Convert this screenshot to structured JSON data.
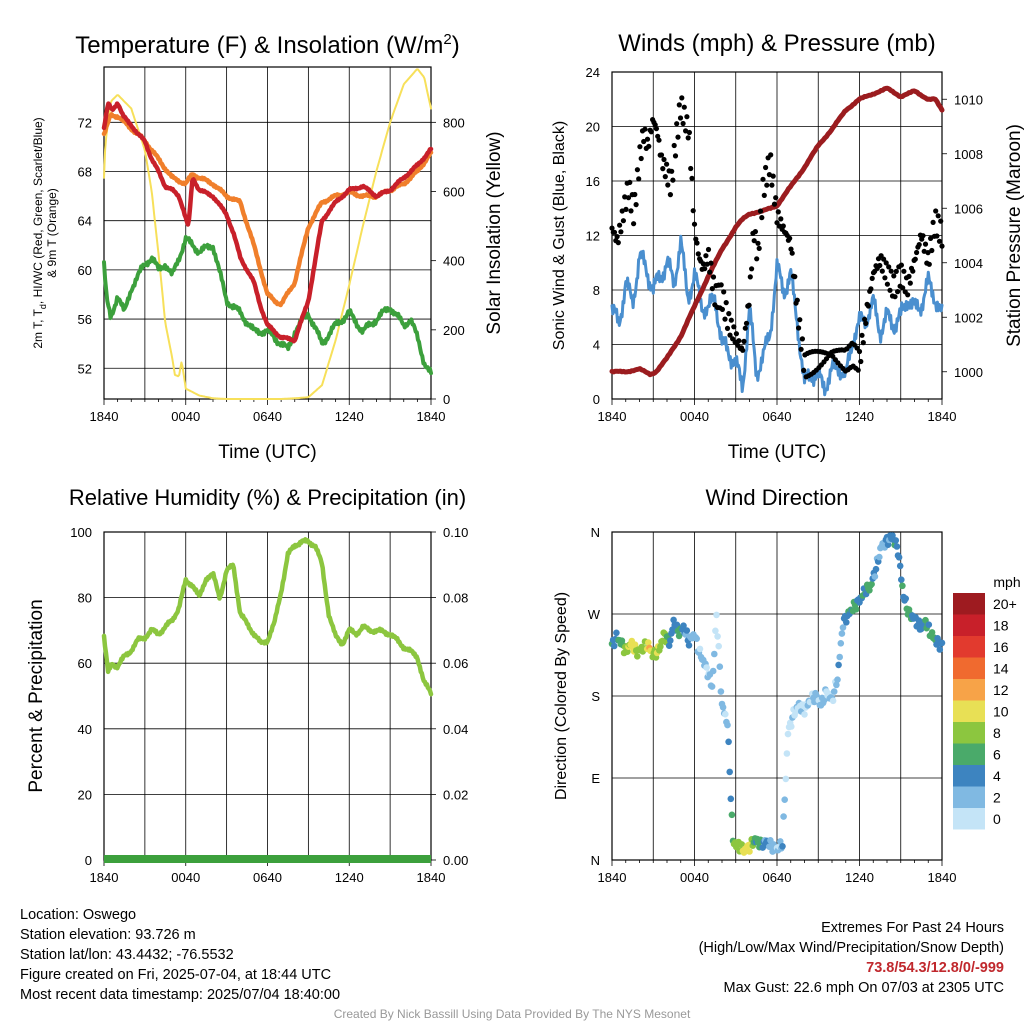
{
  "colors": {
    "red": "#c8202a",
    "orange": "#f07f2b",
    "green": "#3ca03c",
    "yellow": "#f7e05a",
    "blue": "#4a8fcf",
    "black": "#000000",
    "maroon": "#9b1c1f",
    "rh": "#8cc63f",
    "precip": "#3ca03c",
    "extremes": "#c0282d",
    "credit": "#999999"
  },
  "x_ticks": [
    "1840",
    "0040",
    "0640",
    "1240",
    "1840"
  ],
  "chart_data": [
    {
      "type": "line",
      "title": "Temperature (F) & Insolation (W/m²)",
      "title_main": "Temperature (F) & Insolation (W/m",
      "title_sup": "2",
      "title_end": ")",
      "xlabel": "Time (UTC)",
      "ylabel_line1": "2m T, T",
      "ylabel_sub": "d",
      "ylabel_line1_end": ", HI/WC (Red, Green, Scarlet/Blue)",
      "ylabel_line2": "& 9m T (Orange)",
      "y2label": "Solar Insolation (Yellow)",
      "ylim": [
        49.5,
        76.5
      ],
      "yticks": [
        "52",
        "56",
        "60",
        "64",
        "68",
        "72"
      ],
      "y2lim": [
        0,
        960
      ],
      "y2ticks": [
        "0",
        "200",
        "400",
        "600",
        "800"
      ],
      "x_hours": [
        0,
        3,
        6,
        9,
        12,
        15,
        18,
        21,
        24
      ],
      "series": [
        {
          "key": "t2m",
          "x": [
            0,
            0.3,
            0.6,
            1,
            1.4,
            2,
            2.5,
            3,
            3.5,
            4,
            4.5,
            5,
            5.5,
            5.8,
            6,
            6.2,
            6.5,
            7,
            8,
            9,
            9.5,
            10,
            11,
            11.5,
            12,
            12.5,
            13,
            14,
            15,
            16,
            17,
            18,
            19,
            20,
            21,
            22,
            23,
            24
          ],
          "y": [
            71.5,
            73.5,
            73.0,
            73.6,
            72.5,
            71.8,
            71.0,
            70.5,
            69.0,
            68.0,
            66.8,
            66.5,
            66.0,
            65.0,
            64.2,
            63.5,
            67.5,
            66.5,
            66.0,
            64.5,
            63.0,
            61.0,
            59.0,
            57.0,
            55.5,
            55.0,
            54.5,
            54.3,
            57.5,
            64.0,
            65.5,
            66.5,
            66.8,
            66.0,
            66.5,
            67.5,
            68.5,
            69.8
          ]
        },
        {
          "key": "t9m",
          "x": [
            0,
            0.5,
            1,
            1.5,
            2,
            3,
            4,
            5,
            6,
            6.5,
            7,
            8,
            9,
            10,
            11,
            12,
            12.5,
            13,
            14,
            15,
            16,
            17,
            18,
            19,
            20,
            21,
            22,
            23,
            24
          ],
          "y": [
            71.0,
            72.6,
            72.5,
            72.0,
            71.5,
            70.5,
            69.0,
            67.5,
            67.0,
            67.8,
            67.5,
            67.0,
            66.0,
            65.5,
            62.0,
            58.0,
            57.5,
            57.2,
            59.0,
            63.5,
            65.5,
            66.0,
            66.3,
            66.0,
            66.0,
            66.5,
            67.0,
            68.0,
            69.5
          ]
        },
        {
          "key": "td",
          "x": [
            0,
            0.2,
            0.5,
            1,
            1.5,
            2,
            2.5,
            3,
            3.5,
            4,
            4.5,
            5,
            5.5,
            6,
            6.5,
            7,
            8,
            9,
            10,
            11,
            12,
            13,
            13.5,
            14,
            15,
            16,
            17,
            18,
            19,
            20,
            21,
            22,
            22.5,
            23,
            23.5,
            24
          ],
          "y": [
            60.5,
            57.5,
            56.0,
            58.0,
            56.5,
            58.5,
            59.5,
            60.5,
            61.0,
            60.0,
            60.5,
            59.5,
            61.0,
            62.5,
            62.0,
            61.5,
            62.0,
            57.5,
            56.5,
            55.0,
            55.0,
            54.0,
            53.5,
            55.0,
            56.5,
            54.0,
            55.5,
            56.5,
            55.0,
            56.0,
            57.0,
            55.5,
            56.0,
            54.5,
            52.5,
            51.5
          ]
        }
      ],
      "insolation": {
        "x": [
          0,
          0.1,
          0.5,
          1,
          2,
          3,
          3.5,
          4,
          4.5,
          5,
          5.2,
          5.5,
          5.7,
          6,
          7,
          8,
          9,
          10,
          11,
          12,
          13,
          14,
          15,
          16,
          17,
          18,
          19,
          20,
          21,
          22,
          23,
          23.5,
          24
        ],
        "y": [
          640,
          740,
          860,
          880,
          840,
          720,
          600,
          420,
          220,
          120,
          70,
          65,
          110,
          30,
          10,
          2,
          0,
          0,
          0,
          0,
          0,
          2,
          5,
          40,
          170,
          330,
          500,
          660,
          800,
          910,
          955,
          930,
          840
        ]
      }
    },
    {
      "type": "scatter",
      "title": "Winds (mph) & Pressure (mb)",
      "xlabel": "Time (UTC)",
      "ylabel": "Sonic Wind & Gust (Blue, Black)",
      "y2label": "Station Pressure (Maroon)",
      "ylim": [
        0,
        24
      ],
      "yticks": [
        "0",
        "4",
        "8",
        "12",
        "16",
        "20",
        "24"
      ],
      "y2lim": [
        999.0,
        1011.0
      ],
      "y2ticks": [
        "1000",
        "1002",
        "1004",
        "1006",
        "1008",
        "1010"
      ],
      "wind": {
        "x": [
          0,
          0.5,
          1,
          1.5,
          2,
          2.5,
          3,
          3.5,
          4,
          4.5,
          5,
          5.5,
          6,
          6.5,
          7,
          7.5,
          8,
          8.5,
          9,
          9.5,
          10,
          10.5,
          11,
          11.5,
          12,
          12.5,
          13,
          13.5,
          14,
          14.5,
          15,
          15.5,
          16,
          16.5,
          17,
          17.5,
          18,
          18.5,
          19,
          19.5,
          20,
          20.5,
          21,
          21.5,
          22,
          22.5,
          23,
          23.5,
          24
        ],
        "y": [
          6.5,
          5.5,
          8.5,
          7.0,
          10.5,
          9.5,
          8.0,
          9.0,
          10.0,
          8.5,
          11.5,
          7.5,
          9.0,
          7.0,
          6.5,
          7.5,
          4.0,
          3.5,
          2.5,
          1.0,
          6.5,
          2.0,
          3.0,
          5.0,
          9.5,
          8.0,
          9.0,
          5.5,
          1.0,
          2.0,
          1.5,
          1.0,
          2.0,
          2.5,
          1.5,
          4.5,
          5.5,
          6.0,
          7.0,
          5.0,
          6.0,
          5.5,
          6.0,
          7.5,
          6.5,
          7.0,
          8.5,
          7.5,
          6.0
        ]
      },
      "gust": {
        "x": [
          0,
          0.4,
          0.8,
          1.2,
          1.6,
          2,
          2.3,
          2.6,
          3,
          3.3,
          3.6,
          4,
          4.3,
          4.6,
          5,
          5.3,
          5.6,
          6,
          6.3,
          6.6,
          7,
          7.5,
          8,
          8.5,
          9,
          9.5,
          10,
          10.3,
          10.6,
          11,
          11.5,
          12,
          12.5,
          13,
          13.5,
          14,
          15,
          16,
          17,
          17.5,
          18,
          18.5,
          19,
          19.5,
          20,
          20.5,
          21,
          21.5,
          22,
          22.5,
          23,
          23.5,
          24
        ],
        "y": [
          12,
          11,
          13,
          15,
          13,
          17,
          19,
          18,
          20,
          19,
          17,
          16,
          15,
          18,
          21,
          20,
          19,
          12,
          10,
          9,
          10,
          7,
          7,
          5,
          4,
          3,
          7,
          12,
          10,
          15,
          17,
          13,
          12,
          11,
          6,
          2,
          2.5,
          3,
          2.5,
          3,
          2.5,
          6,
          9,
          10,
          9,
          8,
          9,
          8,
          10,
          12,
          10,
          13,
          12
        ]
      },
      "pressure": {
        "x": [
          0,
          1,
          2,
          2.8,
          3.2,
          4,
          5,
          6,
          7,
          8,
          9,
          9.5,
          10,
          11,
          12,
          13,
          14,
          15,
          16,
          17,
          18,
          19,
          20,
          21,
          22,
          23,
          23.5,
          24
        ],
        "y": [
          1000.0,
          1000.0,
          1000.1,
          999.9,
          1000.0,
          1000.5,
          1001.3,
          1002.4,
          1003.5,
          1004.5,
          1005.3,
          1005.6,
          1005.8,
          1005.9,
          1006.1,
          1006.8,
          1007.5,
          1008.3,
          1008.9,
          1009.6,
          1010.0,
          1010.2,
          1010.4,
          1010.1,
          1010.3,
          1010.0,
          1010.0,
          1009.6
        ]
      }
    },
    {
      "type": "line",
      "title": "Relative Humidity (%) & Precipitation (in)",
      "ylabel": "Percent & Precipitation",
      "ylim": [
        0,
        100
      ],
      "yticks": [
        "0",
        "20",
        "40",
        "60",
        "80",
        "100"
      ],
      "y2lim": [
        0,
        0.1
      ],
      "y2ticks": [
        "0.00",
        "0.02",
        "0.04",
        "0.06",
        "0.08",
        "0.10"
      ],
      "series": [
        {
          "key": "rh",
          "x": [
            0,
            0.3,
            0.6,
            1,
            1.5,
            2,
            2.5,
            3,
            3.5,
            4,
            4.5,
            5,
            5.5,
            6,
            6.5,
            7,
            7.5,
            8,
            8.5,
            9,
            9.5,
            10,
            10.5,
            11,
            11.5,
            12,
            12.5,
            13,
            13.5,
            14,
            14.5,
            15,
            15.5,
            16,
            16.5,
            17,
            17.5,
            18,
            18.5,
            19,
            19.5,
            20,
            21,
            22,
            23,
            23.5,
            24
          ],
          "y": [
            68,
            57,
            60,
            59,
            62,
            64,
            67,
            68,
            70,
            69,
            71,
            73,
            77,
            85,
            84,
            80,
            86,
            87,
            80,
            88,
            90,
            75,
            72,
            69,
            66,
            67,
            72,
            82,
            93,
            96,
            97,
            97,
            96,
            90,
            75,
            68,
            66,
            70,
            69,
            71,
            70,
            70,
            69,
            65,
            62,
            54,
            51
          ]
        },
        {
          "key": "precip",
          "x": [
            0,
            24
          ],
          "y": [
            0,
            0
          ]
        }
      ]
    },
    {
      "type": "scatter",
      "title": "Wind Direction",
      "ylabel": "Direction (Colored By Speed)",
      "yticks": [
        "N",
        "E",
        "S",
        "W",
        "N"
      ],
      "ylim": [
        0,
        360
      ],
      "legend_title": "mph",
      "legend_labels": [
        "20+",
        "18",
        "16",
        "14",
        "12",
        "10",
        "8",
        "6",
        "4",
        "2",
        "0"
      ],
      "legend_colors": [
        "#9e1b20",
        "#c8202a",
        "#e23a2e",
        "#f06a2f",
        "#f7a348",
        "#e8e055",
        "#8cc63f",
        "#4aaa6a",
        "#3d84c0",
        "#80b9e2",
        "#c4e4f7"
      ],
      "points": {
        "x": [
          0,
          0.3,
          0.6,
          1,
          1.4,
          1.8,
          2.2,
          2.6,
          3,
          3.4,
          3.8,
          4.2,
          4.5,
          4.8,
          5.2,
          5.6,
          6,
          6.3,
          6.6,
          7,
          7.3,
          7.6,
          8,
          8.4,
          8.8,
          9.2,
          9.6,
          10,
          10.4,
          10.8,
          11.2,
          11.6,
          12,
          12.4,
          12.8,
          13.2,
          13.6,
          14,
          14.4,
          14.8,
          15.2,
          15.6,
          16,
          16.4,
          16.8,
          17.2,
          17.6,
          18,
          18.4,
          18.8,
          19.2,
          19.6,
          20,
          20.4,
          20.8,
          21.2,
          21.6,
          22,
          22.4,
          22.8,
          23.2,
          23.6,
          24
        ],
        "dir": [
          235,
          245,
          240,
          230,
          238,
          228,
          232,
          236,
          225,
          230,
          248,
          238,
          262,
          250,
          255,
          240,
          248,
          230,
          220,
          205,
          190,
          270,
          170,
          150,
          20,
          15,
          10,
          15,
          22,
          18,
          20,
          15,
          12,
          18,
          140,
          160,
          170,
          165,
          175,
          180,
          170,
          185,
          175,
          200,
          260,
          270,
          278,
          285,
          295,
          300,
          320,
          345,
          350,
          355,
          340,
          290,
          270,
          265,
          255,
          262,
          248,
          240,
          235
        ],
        "spd": [
          6,
          5,
          7,
          9,
          11,
          10,
          8,
          12,
          9,
          10,
          8,
          6,
          4,
          7,
          5,
          4,
          3,
          2,
          3,
          2,
          3,
          1,
          3,
          2,
          8,
          9,
          10,
          11,
          7,
          6,
          4,
          3,
          2,
          4,
          1,
          2,
          2,
          1,
          2,
          2,
          3,
          2,
          2,
          3,
          4,
          6,
          7,
          5,
          6,
          7,
          4,
          3,
          4,
          5,
          6,
          5,
          7,
          6,
          5,
          6,
          7,
          6,
          5
        ]
      }
    }
  ],
  "info": {
    "location": "Location: Oswego",
    "elevation": "Station elevation: 93.726 m",
    "latlon": "Station lat/lon: 43.4432; -76.5532",
    "created": "Figure created on Fri, 2025-07-04, at 18:44 UTC",
    "recent": "Most recent data timestamp: 2025/07/04 18:40:00",
    "extremes_title": "Extremes For Past 24 Hours",
    "extremes_desc": "(High/Low/Max Wind/Precipitation/Snow Depth)",
    "extremes_values": "73.8/54.3/12.8/0/-999",
    "max_gust": "Max Gust: 22.6 mph On 07/03 at 2305 UTC"
  },
  "credit": "Created By Nick Bassill Using Data Provided By The NYS Mesonet"
}
